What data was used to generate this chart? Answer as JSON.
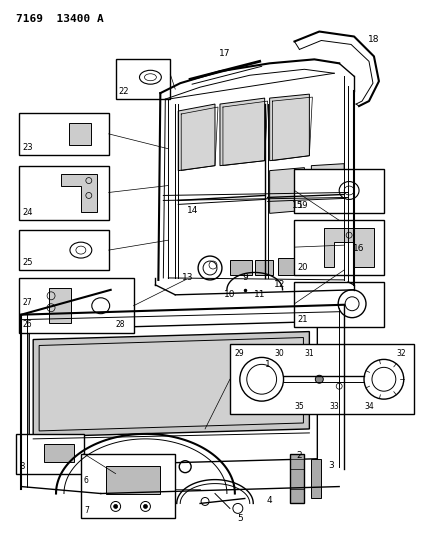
{
  "title": "7169 13400 A",
  "bg_color": "#ffffff",
  "fig_width": 4.28,
  "fig_height": 5.33,
  "dpi": 100,
  "black": "#000000",
  "gray_light": "#cccccc",
  "gray_mid": "#888888"
}
